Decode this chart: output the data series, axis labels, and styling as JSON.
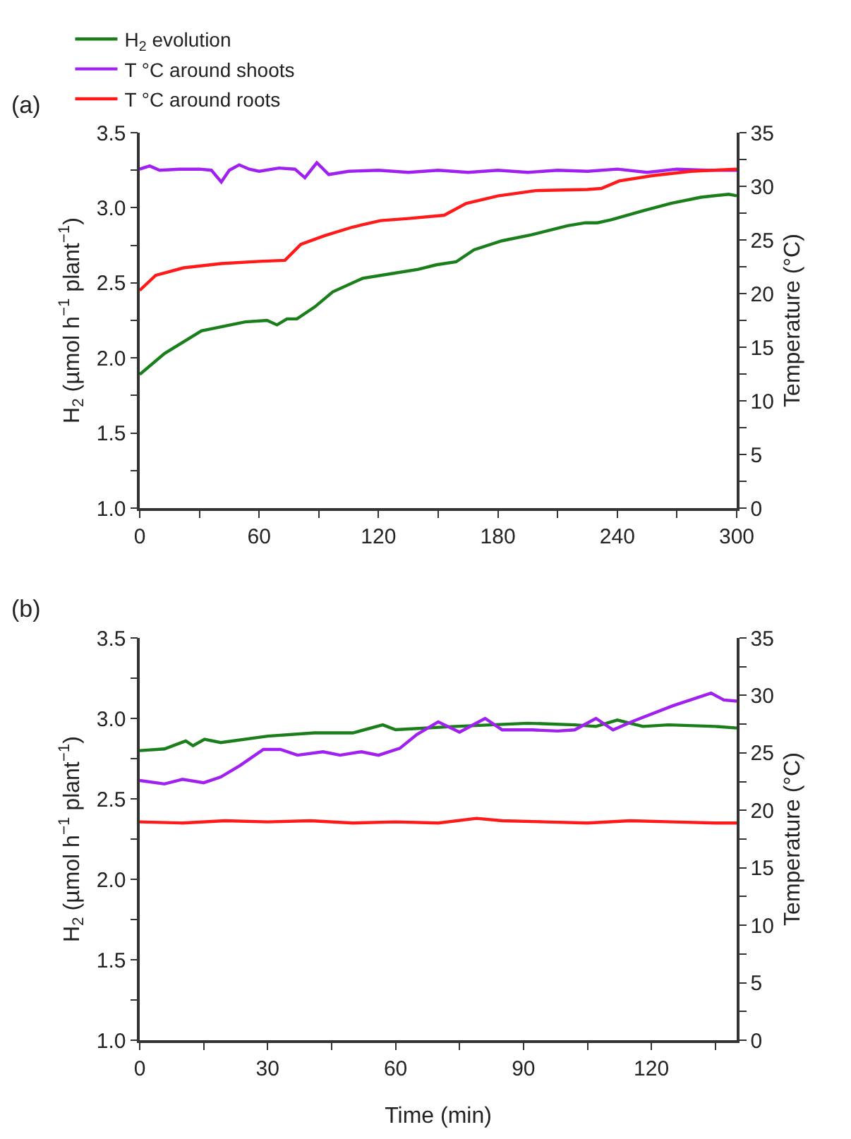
{
  "chart_data": [
    {
      "type": "line",
      "ylabel": "H$_{2}$ (µmol h$^{−1}$ plant$^{−1}$)",
      "y2label": "Temperature (°C)",
      "annotations": [
        "(a)"
      ],
      "legend": "top",
      "grid": false,
      "marker": "none",
      "line_style": "solid",
      "xlim": [
        0,
        300
      ],
      "xticks": [
        0,
        {
          "value": 30,
          "label": null
        },
        60,
        {
          "value": 90,
          "label": null
        },
        120,
        {
          "value": 150,
          "label": null
        },
        180,
        {
          "value": 210,
          "label": null
        },
        240,
        {
          "value": 270,
          "label": null
        },
        300
      ],
      "ylim": [
        1.0,
        3.5
      ],
      "yticks": [
        {
          "value": 1.0,
          "label": "1.0"
        },
        {
          "value": 1.25,
          "label": null
        },
        {
          "value": 1.5,
          "label": "1.5"
        },
        {
          "value": 1.75,
          "label": null
        },
        {
          "value": 2.0,
          "label": "2.0"
        },
        {
          "value": 2.25,
          "label": null
        },
        {
          "value": 2.5,
          "label": "2.5"
        },
        {
          "value": 2.75,
          "label": null
        },
        {
          "value": 3.0,
          "label": "3.0"
        },
        {
          "value": 3.25,
          "label": null
        },
        {
          "value": 3.5,
          "label": "3.5"
        }
      ],
      "y2lim": [
        0,
        35
      ],
      "y2ticks": [
        0,
        {
          "value": 2.5,
          "label": null
        },
        5,
        {
          "value": 7.5,
          "label": null
        },
        10,
        {
          "value": 12.5,
          "label": null
        },
        15,
        {
          "value": 17.5,
          "label": null
        },
        20,
        {
          "value": 22.5,
          "label": null
        },
        25,
        {
          "value": 27.5,
          "label": null
        },
        30,
        {
          "value": 32.5,
          "label": null
        },
        35
      ],
      "series": [
        {
          "name": "H$_{2}$ evolution",
          "color": "#1a7f1a",
          "x": [
            0,
            12.5,
            31,
            53,
            64,
            69,
            74,
            79,
            88,
            97,
            112,
            126,
            140,
            149,
            159,
            168,
            182,
            197,
            215,
            224,
            230,
            237,
            253,
            267,
            282,
            296,
            300
          ],
          "values": [
            1.89,
            2.03,
            2.18,
            2.24,
            2.25,
            2.22,
            2.26,
            2.26,
            2.34,
            2.44,
            2.53,
            2.56,
            2.59,
            2.62,
            2.64,
            2.72,
            2.78,
            2.82,
            2.88,
            2.9,
            2.9,
            2.92,
            2.98,
            3.03,
            3.07,
            3.09,
            3.08
          ]
        },
        {
          "name": "T °C around shoots",
          "color": "#a020f0",
          "axis": "y2",
          "x": [
            0,
            5,
            10,
            20,
            30,
            36,
            41,
            45,
            50,
            55,
            60,
            70,
            78,
            83,
            89,
            95,
            105,
            120,
            135,
            150,
            165,
            180,
            195,
            210,
            225,
            240,
            255,
            270,
            285,
            300
          ],
          "values": [
            31.6,
            31.9,
            31.5,
            31.6,
            31.6,
            31.5,
            30.4,
            31.5,
            32.0,
            31.6,
            31.4,
            31.7,
            31.6,
            30.8,
            32.2,
            31.1,
            31.4,
            31.5,
            31.3,
            31.5,
            31.3,
            31.5,
            31.3,
            31.5,
            31.4,
            31.6,
            31.3,
            31.6,
            31.5,
            31.5
          ]
        },
        {
          "name": "T °C around roots",
          "color": "#ff1a1a",
          "axis": "y2",
          "x": [
            0,
            8,
            22,
            41,
            60,
            73,
            81,
            93,
            107,
            121,
            135,
            153,
            164,
            180,
            199,
            225,
            232,
            241,
            258,
            277,
            300
          ],
          "values": [
            20.3,
            21.7,
            22.4,
            22.8,
            23.0,
            23.1,
            24.6,
            25.4,
            26.2,
            26.8,
            27.0,
            27.3,
            28.4,
            29.1,
            29.6,
            29.7,
            29.8,
            30.5,
            31.0,
            31.4,
            31.6
          ]
        }
      ]
    },
    {
      "type": "line",
      "xlabel": "Time (min)",
      "ylabel": "H$_{2}$ (µmol h$^{−1}$ plant$^{−1}$)",
      "y2label": "Temperature (°C)",
      "annotations": [
        "(b)"
      ],
      "legend": false,
      "grid": false,
      "marker": "none",
      "line_style": "solid",
      "xlim": [
        0,
        140
      ],
      "xticks": [
        0,
        {
          "value": 15,
          "label": null
        },
        30,
        {
          "value": 45,
          "label": null
        },
        60,
        {
          "value": 75,
          "label": null
        },
        90,
        {
          "value": 105,
          "label": null
        },
        120,
        {
          "value": 135,
          "label": null
        }
      ],
      "ylim": [
        1.0,
        3.5
      ],
      "yticks": [
        {
          "value": 1.0,
          "label": "1.0"
        },
        {
          "value": 1.25,
          "label": null
        },
        {
          "value": 1.5,
          "label": "1.5"
        },
        {
          "value": 1.75,
          "label": null
        },
        {
          "value": 2.0,
          "label": "2.0"
        },
        {
          "value": 2.25,
          "label": null
        },
        {
          "value": 2.5,
          "label": "2.5"
        },
        {
          "value": 2.75,
          "label": null
        },
        {
          "value": 3.0,
          "label": "3.0"
        },
        {
          "value": 3.25,
          "label": null
        },
        {
          "value": 3.5,
          "label": "3.5"
        }
      ],
      "y2lim": [
        0,
        35
      ],
      "y2ticks": [
        0,
        {
          "value": 2.5,
          "label": null
        },
        5,
        {
          "value": 7.5,
          "label": null
        },
        10,
        {
          "value": 12.5,
          "label": null
        },
        15,
        {
          "value": 17.5,
          "label": null
        },
        20,
        {
          "value": 22.5,
          "label": null
        },
        25,
        {
          "value": 27.5,
          "label": null
        },
        30,
        {
          "value": 32.5,
          "label": null
        },
        35
      ],
      "series": [
        {
          "color": "#1a7f1a",
          "x": [
            0,
            5.8,
            10.8,
            12.5,
            15.2,
            19,
            30,
            41,
            50,
            57,
            60,
            74,
            91,
            102,
            107,
            112,
            118,
            124,
            135,
            140
          ],
          "values": [
            2.8,
            2.81,
            2.86,
            2.83,
            2.87,
            2.85,
            2.89,
            2.91,
            2.91,
            2.96,
            2.93,
            2.95,
            2.97,
            2.96,
            2.95,
            2.99,
            2.95,
            2.96,
            2.95,
            2.94
          ]
        },
        {
          "color": "#a020f0",
          "axis": "y2",
          "x": [
            0,
            5.8,
            10,
            15,
            19,
            23.5,
            29,
            33,
            37,
            43,
            47,
            52,
            56,
            61,
            65,
            70,
            75,
            81,
            85,
            92,
            98,
            102,
            107,
            111,
            116,
            125,
            134,
            137,
            140
          ],
          "values": [
            22.6,
            22.3,
            22.7,
            22.4,
            22.9,
            23.9,
            25.3,
            25.3,
            24.8,
            25.1,
            24.8,
            25.1,
            24.8,
            25.4,
            26.6,
            27.7,
            26.8,
            28.0,
            27.0,
            27.0,
            26.9,
            27.0,
            28.0,
            27.0,
            27.8,
            29.1,
            30.2,
            29.6,
            29.5
          ]
        },
        {
          "color": "#ff1a1a",
          "axis": "y2",
          "x": [
            0,
            10,
            20,
            30,
            40,
            50,
            60,
            70,
            79,
            85,
            95,
            105,
            115,
            125,
            135,
            140
          ],
          "values": [
            19.0,
            18.9,
            19.1,
            19.0,
            19.1,
            18.9,
            19.0,
            18.9,
            19.3,
            19.1,
            19.0,
            18.9,
            19.1,
            19.0,
            18.9,
            18.9
          ]
        }
      ]
    }
  ]
}
